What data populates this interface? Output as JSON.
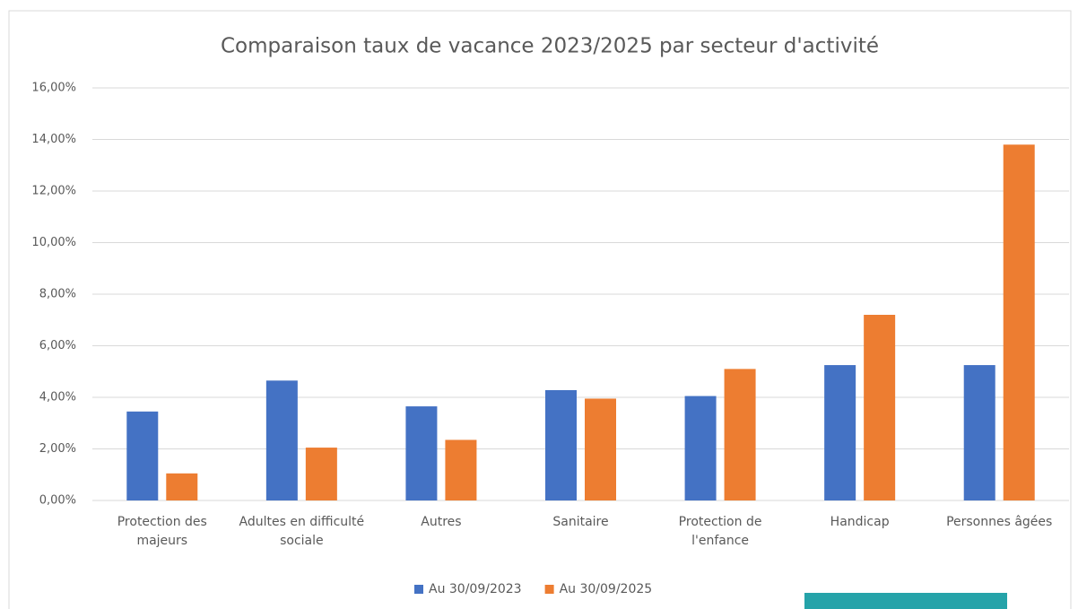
{
  "chart_data": {
    "type": "bar",
    "title": "Comparaison taux de vacance 2023/2025 par secteur d'activité",
    "categories": [
      "Protection des majeurs",
      "Adultes en difficulté sociale",
      "Autres",
      "Sanitaire",
      "Protection de l'enfance",
      "Handicap",
      "Personnes âgées"
    ],
    "series": [
      {
        "name": "Au 30/09/2023",
        "color": "#4472c4",
        "values": [
          3.45,
          4.65,
          3.65,
          4.28,
          4.05,
          5.25,
          5.25
        ]
      },
      {
        "name": "Au 30/09/2025",
        "color": "#ed7d31",
        "values": [
          1.05,
          2.05,
          2.35,
          3.95,
          5.1,
          7.2,
          13.8
        ]
      }
    ],
    "ylim": [
      0,
      16
    ],
    "yticks": [
      {
        "value": 0,
        "label": "0,00%"
      },
      {
        "value": 2,
        "label": "2,00%"
      },
      {
        "value": 4,
        "label": "4,00%"
      },
      {
        "value": 6,
        "label": "6,00%"
      },
      {
        "value": 8,
        "label": "8,00%"
      },
      {
        "value": 10,
        "label": "10,00%"
      },
      {
        "value": 12,
        "label": "12,00%"
      },
      {
        "value": 14,
        "label": "14,00%"
      },
      {
        "value": 16,
        "label": "16,00%"
      }
    ],
    "grid": true,
    "legend": "bottom"
  }
}
